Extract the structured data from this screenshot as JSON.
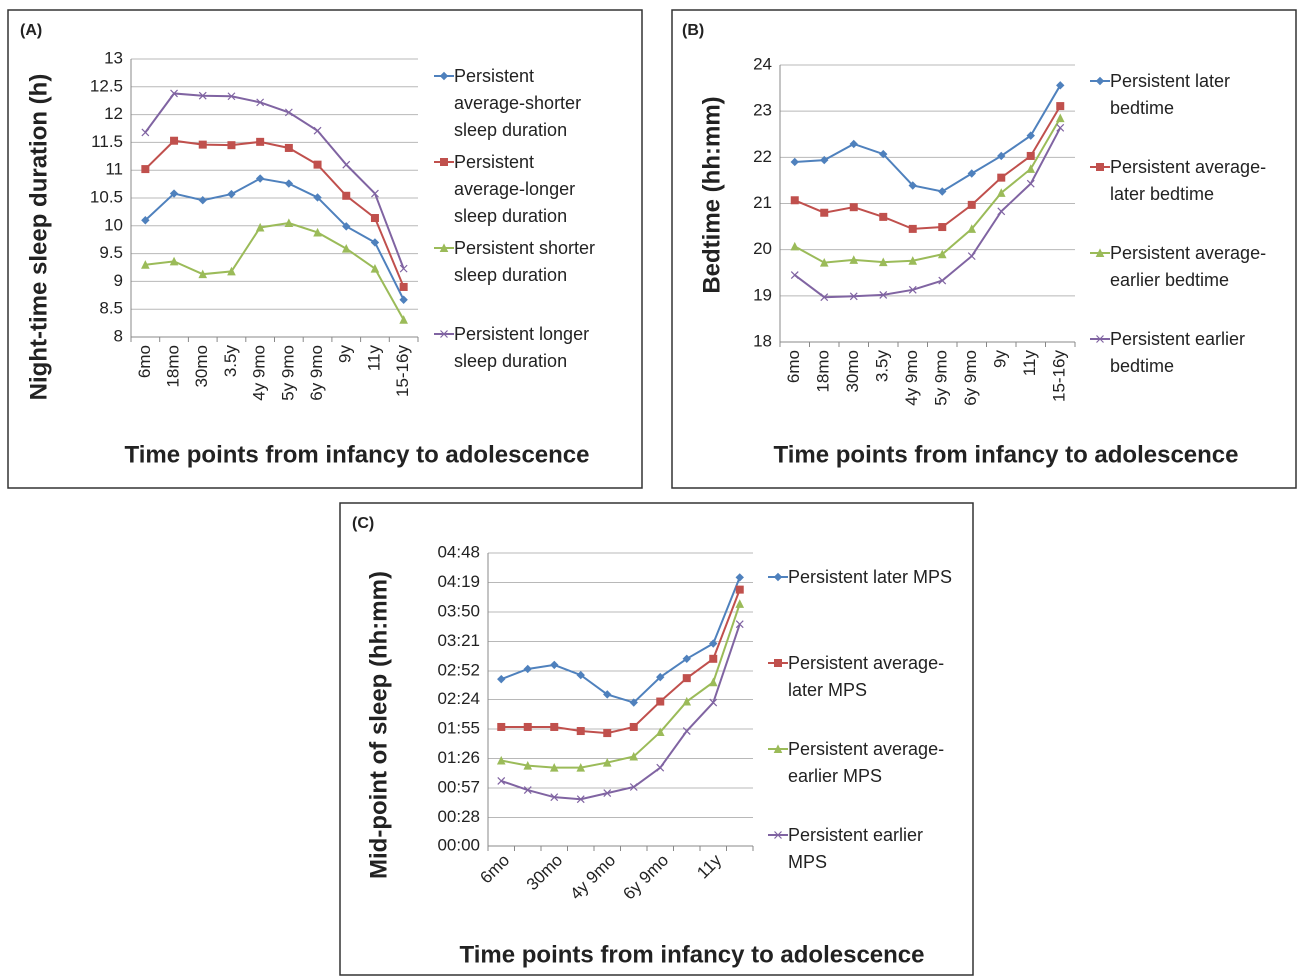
{
  "chart_data": [
    {
      "type": "line",
      "panel_label": "(A)",
      "y_label": "Night-time sleep duration (h)",
      "x_label": "Time points from infancy to adolescence",
      "categories": [
        "6mo",
        "18mo",
        "30mo",
        "3.5y",
        "4y 9mo",
        "5y 9mo",
        "6y 9mo",
        "9y",
        "11y",
        "15-16y"
      ],
      "ylim": [
        8,
        13
      ],
      "yticks": [
        8,
        8.5,
        9,
        9.5,
        10,
        10.5,
        11,
        11.5,
        12,
        12.5,
        13
      ],
      "grid": true,
      "series": [
        {
          "name": "Persistent average-shorter sleep duration",
          "color": "#4f81bd",
          "marker": "diamond",
          "values": [
            10.1,
            10.58,
            10.46,
            10.57,
            10.85,
            10.76,
            10.51,
            9.99,
            9.7,
            8.67
          ]
        },
        {
          "name": "Persistent average-longer sleep duration",
          "color": "#c0504d",
          "marker": "square",
          "values": [
            11.02,
            11.53,
            11.46,
            11.45,
            11.51,
            11.4,
            11.1,
            10.54,
            10.14,
            8.9
          ]
        },
        {
          "name": "Persistent shorter sleep duration",
          "color": "#9bbb59",
          "marker": "triangle",
          "values": [
            9.3,
            9.36,
            9.13,
            9.18,
            9.97,
            10.05,
            9.88,
            9.59,
            9.23,
            8.31
          ]
        },
        {
          "name": "Persistent longer sleep duration",
          "color": "#8064a2",
          "marker": "x",
          "values": [
            11.68,
            12.38,
            12.34,
            12.33,
            12.22,
            12.04,
            11.71,
            11.1,
            10.58,
            9.23
          ]
        }
      ]
    },
    {
      "type": "line",
      "panel_label": "(B)",
      "y_label": "Bedtime (hh:mm)",
      "x_label": "Time points from infancy to adolescence",
      "categories": [
        "6mo",
        "18mo",
        "30mo",
        "3.5y",
        "4y 9mo",
        "5y 9mo",
        "6y 9mo",
        "9y",
        "11y",
        "15-16y"
      ],
      "ylim": [
        18,
        24
      ],
      "yticks": [
        18,
        19,
        20,
        21,
        22,
        23,
        24
      ],
      "grid": true,
      "series": [
        {
          "name": "Persistent later bedtime",
          "color": "#4f81bd",
          "marker": "diamond",
          "values": [
            21.9,
            21.94,
            22.29,
            22.07,
            21.39,
            21.26,
            21.65,
            22.03,
            22.47,
            23.56
          ]
        },
        {
          "name": "Persistent average-later bedtime",
          "color": "#c0504d",
          "marker": "square",
          "values": [
            21.07,
            20.8,
            20.92,
            20.71,
            20.45,
            20.49,
            20.97,
            21.56,
            22.03,
            23.11
          ]
        },
        {
          "name": "Persistent average-earlier bedtime",
          "color": "#9bbb59",
          "marker": "triangle",
          "values": [
            20.07,
            19.72,
            19.78,
            19.73,
            19.76,
            19.9,
            20.45,
            21.23,
            21.75,
            22.85
          ]
        },
        {
          "name": "Persistent earlier bedtime",
          "color": "#8064a2",
          "marker": "x",
          "values": [
            19.45,
            18.97,
            18.99,
            19.02,
            19.13,
            19.33,
            19.86,
            20.83,
            21.43,
            22.64
          ]
        }
      ]
    },
    {
      "type": "line",
      "panel_label": "(C)",
      "y_label": "Mid-point of sleep (hh:mm)",
      "x_label": "Time points from infancy to adolescence",
      "categories": [
        "6mo",
        null,
        "30mo",
        null,
        "4y 9mo",
        null,
        "6y 9mo",
        null,
        "11y",
        null
      ],
      "ylim": [
        0,
        288
      ],
      "yticks": [
        {
          "value": 0,
          "label": "00:00"
        },
        {
          "value": 28,
          "label": "00:28"
        },
        {
          "value": 57,
          "label": "00:57"
        },
        {
          "value": 86,
          "label": "01:26"
        },
        {
          "value": 115,
          "label": "01:55"
        },
        {
          "value": 144,
          "label": "02:24"
        },
        {
          "value": 172,
          "label": "02:52"
        },
        {
          "value": 201,
          "label": "03:21"
        },
        {
          "value": 230,
          "label": "03:50"
        },
        {
          "value": 259,
          "label": "04:19"
        },
        {
          "value": 288,
          "label": "04:48"
        }
      ],
      "grid": true,
      "series": [
        {
          "name": "Persistent later MPS",
          "color": "#4f81bd",
          "marker": "diamond",
          "values": [
            164,
            174,
            178,
            168,
            149,
            141,
            166,
            184,
            199,
            264
          ]
        },
        {
          "name": "Persistent average-later MPS",
          "color": "#c0504d",
          "marker": "square",
          "values": [
            117,
            117,
            117,
            113,
            111,
            117,
            142,
            165,
            184,
            252
          ]
        },
        {
          "name": "Persistent average-earlier MPS",
          "color": "#9bbb59",
          "marker": "triangle",
          "values": [
            84,
            79,
            77,
            77,
            82,
            88,
            112,
            142,
            161,
            238
          ]
        },
        {
          "name": "Persistent earlier MPS",
          "color": "#8064a2",
          "marker": "x",
          "values": [
            64,
            55,
            48,
            46,
            52,
            58,
            77,
            113,
            141,
            218
          ]
        }
      ]
    }
  ]
}
